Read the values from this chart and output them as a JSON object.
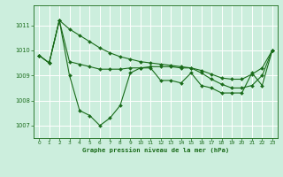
{
  "title": "Graphe pression niveau de la mer (hPa)",
  "background_color": "#cceedd",
  "grid_color": "#ffffff",
  "line_color": "#1a6b1a",
  "xlim": [
    -0.5,
    23.5
  ],
  "ylim": [
    1006.5,
    1011.8
  ],
  "yticks": [
    1007,
    1008,
    1009,
    1010,
    1011
  ],
  "xticks": [
    0,
    1,
    2,
    3,
    4,
    5,
    6,
    7,
    8,
    9,
    10,
    11,
    12,
    13,
    14,
    15,
    16,
    17,
    18,
    19,
    20,
    21,
    22,
    23
  ],
  "series1_x": [
    0,
    1,
    2,
    3,
    4,
    5,
    6,
    7,
    8,
    9,
    10,
    11,
    12,
    13,
    14,
    15,
    16,
    17,
    18,
    19,
    20,
    21,
    22,
    23
  ],
  "series1_y": [
    1009.8,
    1009.5,
    1011.2,
    1009.0,
    1007.6,
    1007.4,
    1007.0,
    1007.3,
    1007.8,
    1009.1,
    1009.3,
    1009.3,
    1008.8,
    1008.8,
    1008.7,
    1009.1,
    1008.6,
    1008.5,
    1008.3,
    1008.3,
    1008.3,
    1009.1,
    1008.6,
    1010.0
  ],
  "series2_x": [
    0,
    1,
    2,
    3,
    4,
    5,
    6,
    7,
    8,
    9,
    10,
    11,
    12,
    13,
    14,
    15,
    16,
    17,
    18,
    19,
    20,
    21,
    22,
    23
  ],
  "series2_y": [
    1009.8,
    1009.5,
    1011.2,
    1009.55,
    1009.45,
    1009.35,
    1009.25,
    1009.25,
    1009.25,
    1009.3,
    1009.3,
    1009.35,
    1009.35,
    1009.35,
    1009.3,
    1009.3,
    1009.1,
    1008.85,
    1008.65,
    1008.5,
    1008.5,
    1008.6,
    1009.0,
    1010.0
  ],
  "series3_x": [
    0,
    1,
    2,
    3,
    4,
    5,
    6,
    7,
    8,
    9,
    10,
    11,
    12,
    13,
    14,
    15,
    16,
    17,
    18,
    19,
    20,
    21,
    22,
    23
  ],
  "series3_y": [
    1009.8,
    1009.5,
    1011.2,
    1010.85,
    1010.6,
    1010.35,
    1010.1,
    1009.9,
    1009.75,
    1009.65,
    1009.55,
    1009.5,
    1009.45,
    1009.4,
    1009.35,
    1009.3,
    1009.2,
    1009.05,
    1008.9,
    1008.85,
    1008.85,
    1009.05,
    1009.3,
    1010.0
  ]
}
